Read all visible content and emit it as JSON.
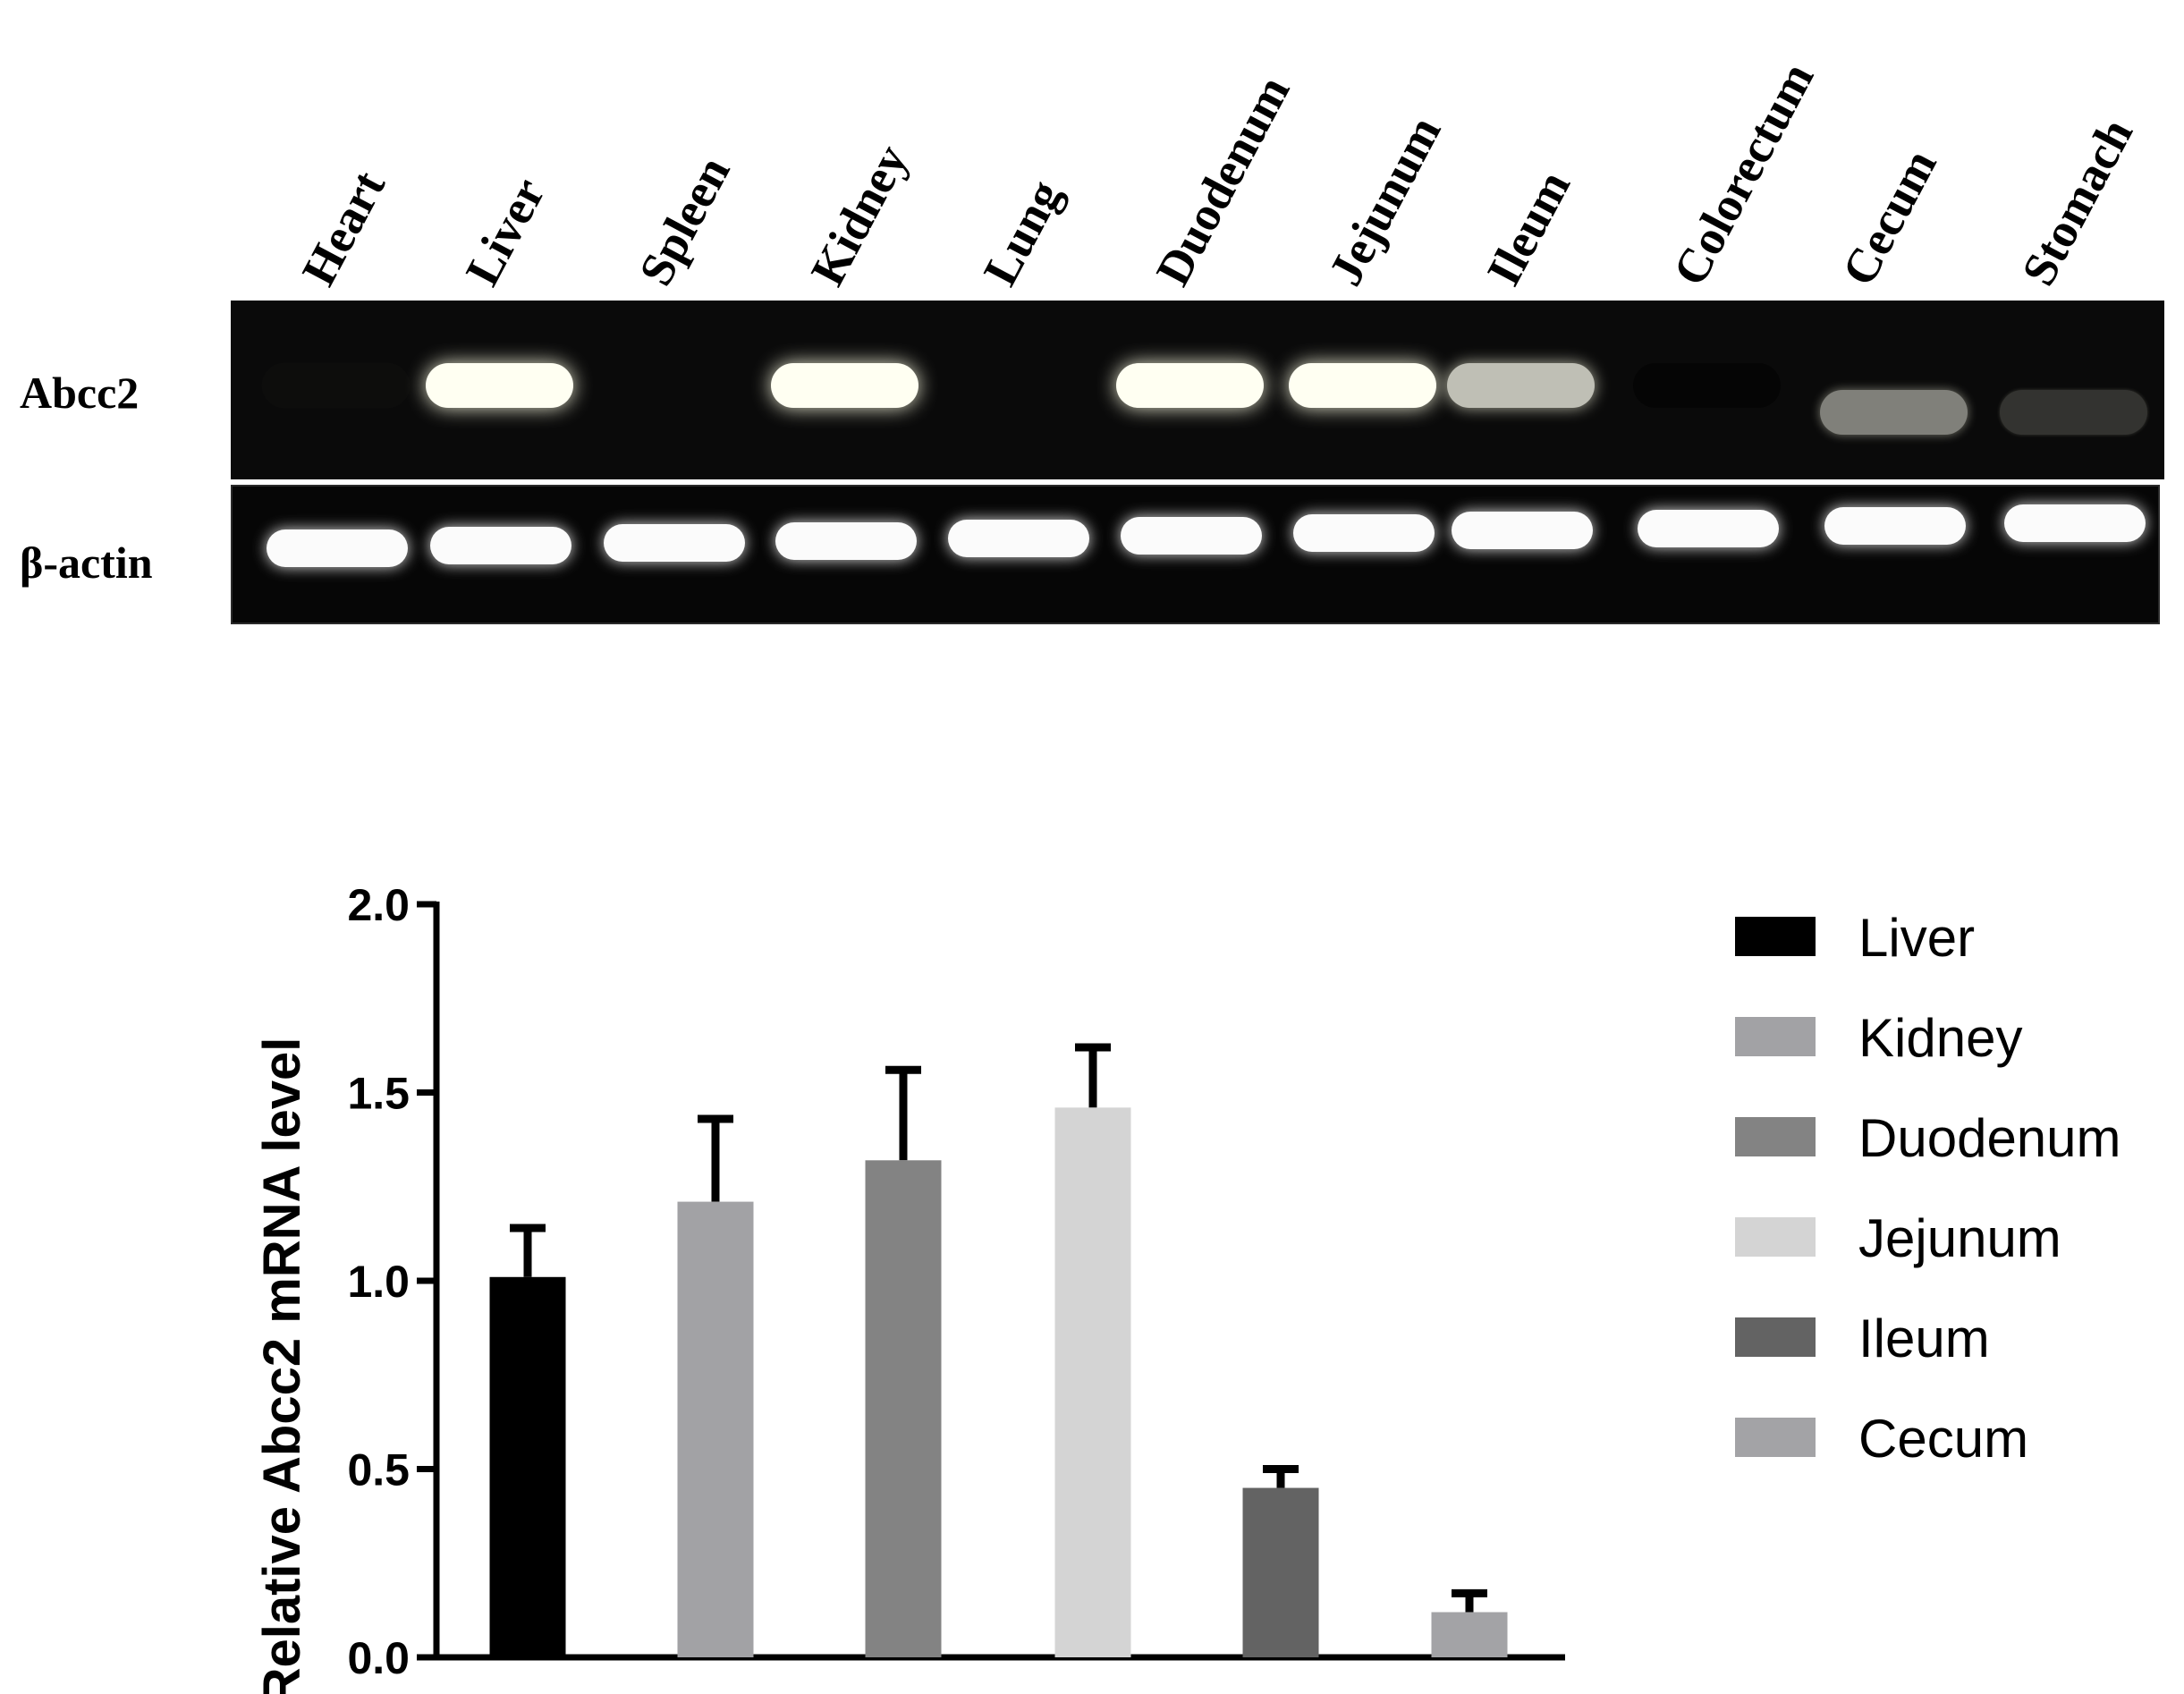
{
  "gel": {
    "lanes": [
      "Heart",
      "Liver",
      "Spleen",
      "Kidney",
      "Lung",
      "Duodenum",
      "Jejunum",
      "Ileum",
      "Colorectum",
      "Cecum",
      "Stomach"
    ],
    "rows": [
      {
        "label": "Abcc2",
        "intensities": [
          0.05,
          1.0,
          0.0,
          1.0,
          0.0,
          1.0,
          1.0,
          0.75,
          0.02,
          0.5,
          0.2
        ]
      },
      {
        "label": "β-actin",
        "intensities": [
          1,
          1,
          1,
          1,
          1,
          1,
          1,
          1,
          1,
          1,
          1
        ]
      }
    ]
  },
  "chart_data": {
    "type": "bar",
    "title": "",
    "xlabel": "",
    "ylabel": "Relative Abcc2 mRNA level",
    "ylim": [
      0,
      2.0
    ],
    "yticks": [
      "0.0",
      "0.5",
      "1.0",
      "1.5",
      "2.0"
    ],
    "categories": [
      "Liver",
      "Kidney",
      "Duodenum",
      "Jejunum",
      "Ileum",
      "Cecum"
    ],
    "values": [
      1.01,
      1.21,
      1.32,
      1.46,
      0.45,
      0.12
    ],
    "errors": [
      0.13,
      0.22,
      0.24,
      0.16,
      0.05,
      0.05
    ],
    "colors": [
      "#000000",
      "#a2a2a5",
      "#838383",
      "#d4d4d4",
      "#636363",
      "#a3a3a6"
    ],
    "legend": {
      "position": "right",
      "entries": [
        "Liver",
        "Kidney",
        "Duodenum",
        "Jejunum",
        "Ileum",
        "Cecum"
      ]
    },
    "grid": false
  }
}
